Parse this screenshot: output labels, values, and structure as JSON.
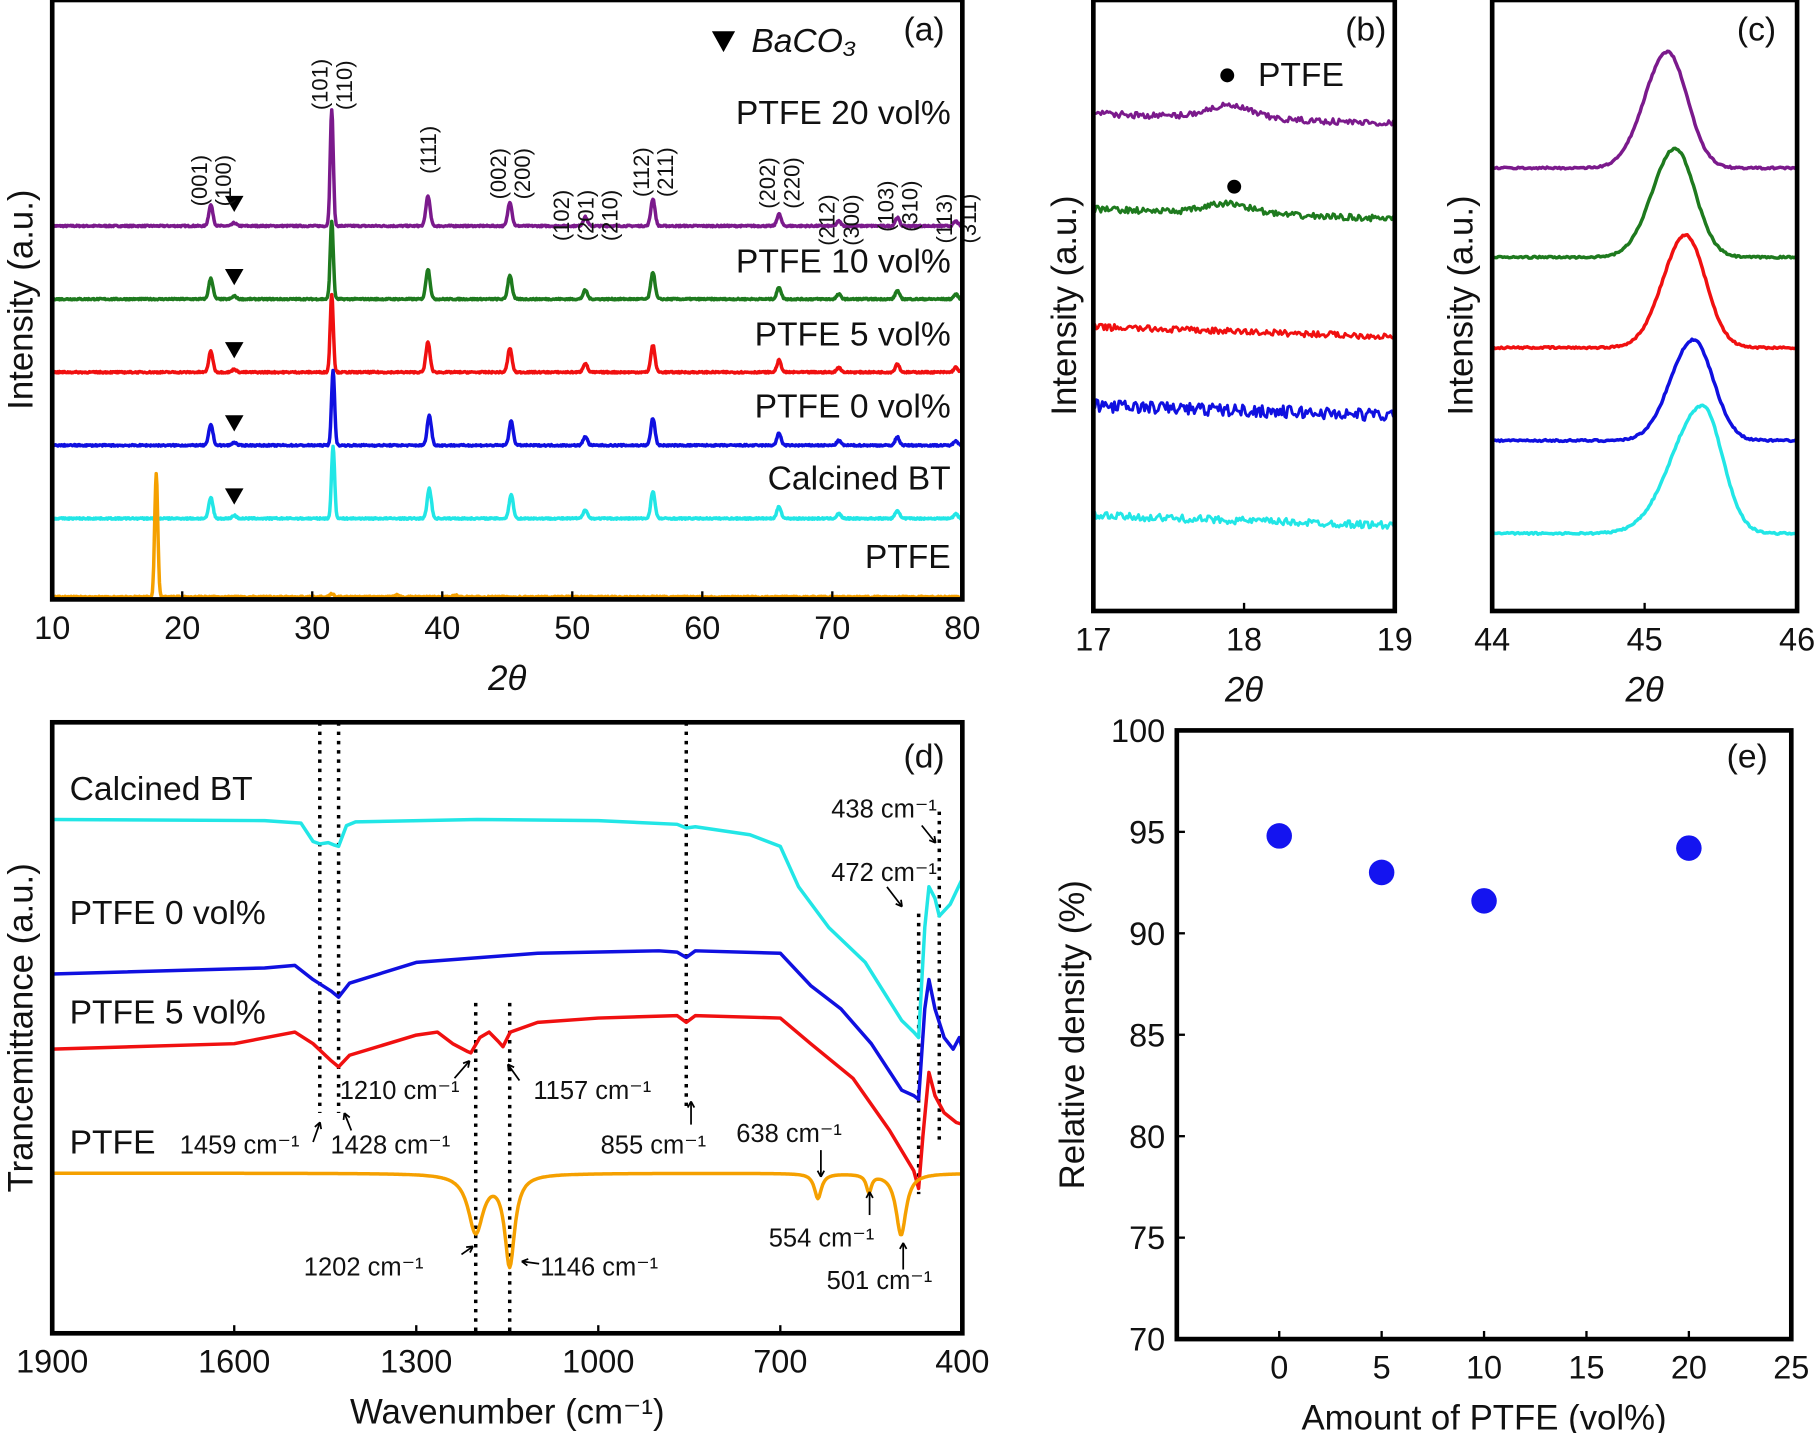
{
  "chart_data": [
    {
      "panel": "(a)",
      "type": "line",
      "xlabel": "2θ",
      "ylabel": "Intensity (a.u.)",
      "xlim": [
        10,
        80
      ],
      "xticks": [
        10,
        20,
        30,
        40,
        50,
        60,
        70,
        80
      ],
      "grid": false,
      "legend": {
        "marker": "▼",
        "text": "BaCO₃",
        "placement": "top-right"
      },
      "baco3_marker_2theta": 24,
      "series": [
        {
          "name": "PTFE 20 vol%",
          "color": "#7b1a8c",
          "offset": 62.3,
          "baco3": true,
          "peaks": [
            [
              22.2,
              3.5
            ],
            [
              24,
              0.5
            ],
            [
              31.5,
              19.3
            ],
            [
              38.9,
              5
            ],
            [
              45.2,
              4
            ],
            [
              51,
              1.5
            ],
            [
              56.2,
              4.5
            ],
            [
              65.9,
              2
            ],
            [
              70.5,
              0.8
            ],
            [
              75,
              1.4
            ],
            [
              79.5,
              0.8
            ]
          ]
        },
        {
          "name": "PTFE 10 vol%",
          "color": "#1e7a1e",
          "offset": 50.1,
          "baco3": true,
          "peaks": [
            [
              22.2,
              3.5
            ],
            [
              24,
              0.5
            ],
            [
              31.5,
              13
            ],
            [
              38.9,
              5
            ],
            [
              45.2,
              4
            ],
            [
              51,
              1.5
            ],
            [
              56.2,
              4.5
            ],
            [
              65.9,
              2
            ],
            [
              70.5,
              0.8
            ],
            [
              75,
              1.4
            ],
            [
              79.5,
              0.8
            ]
          ]
        },
        {
          "name": "PTFE 5 vol%",
          "color": "#f01010",
          "offset": 37.9,
          "baco3": true,
          "peaks": [
            [
              22.2,
              3.5
            ],
            [
              24,
              0.5
            ],
            [
              31.5,
              13
            ],
            [
              38.9,
              5
            ],
            [
              45.2,
              4
            ],
            [
              51,
              1.5
            ],
            [
              56.2,
              4.5
            ],
            [
              65.9,
              2
            ],
            [
              70.5,
              0.8
            ],
            [
              75,
              1.4
            ],
            [
              79.5,
              0.8
            ]
          ]
        },
        {
          "name": "PTFE 0 vol%",
          "color": "#1010e0",
          "offset": 25.7,
          "baco3": true,
          "peaks": [
            [
              22.2,
              3.5
            ],
            [
              24,
              0.5
            ],
            [
              31.6,
              12.4
            ],
            [
              39,
              5
            ],
            [
              45.3,
              4
            ],
            [
              51,
              1.5
            ],
            [
              56.2,
              4.5
            ],
            [
              65.9,
              2
            ],
            [
              70.5,
              0.8
            ],
            [
              75,
              1.4
            ],
            [
              79.5,
              0.8
            ]
          ]
        },
        {
          "name": "Calcined BT",
          "color": "#22e6e6",
          "offset": 13.5,
          "baco3": true,
          "peaks": [
            [
              22.2,
              3.5
            ],
            [
              24,
              0.5
            ],
            [
              31.6,
              12
            ],
            [
              39,
              5
            ],
            [
              45.3,
              4
            ],
            [
              51,
              1.5
            ],
            [
              56.2,
              4.5
            ],
            [
              65.9,
              2
            ],
            [
              70.5,
              0.8
            ],
            [
              75,
              1.4
            ],
            [
              79.5,
              0.8
            ]
          ]
        },
        {
          "name": "PTFE",
          "color": "#f5a000",
          "offset": 0.4,
          "baco3": false,
          "peaks": [
            [
              18,
              20.5
            ],
            [
              31.5,
              0.5
            ],
            [
              36.5,
              0.3
            ],
            [
              41,
              0.3
            ]
          ]
        }
      ],
      "miller_labels": [
        {
          "peak_2theta": 22.2,
          "lines": [
            "(001)",
            "(100)"
          ]
        },
        {
          "peak_2theta": 31.5,
          "lines": [
            "(101)",
            "(110)"
          ]
        },
        {
          "peak_2theta": 38.9,
          "lines": [
            "(111)"
          ]
        },
        {
          "peak_2theta": 45.2,
          "lines": [
            "(002)",
            "(200)"
          ]
        },
        {
          "peak_2theta": 51,
          "lines": [
            "(102)",
            "(201)",
            "(210)"
          ]
        },
        {
          "peak_2theta": 56.2,
          "lines": [
            "(112)",
            "(211)"
          ]
        },
        {
          "peak_2theta": 65.9,
          "lines": [
            "(202)",
            "(220)"
          ]
        },
        {
          "peak_2theta": 70.5,
          "lines": [
            "(212)",
            "(300)"
          ]
        },
        {
          "peak_2theta": 75,
          "lines": [
            "(103)",
            "(310)"
          ]
        },
        {
          "peak_2theta": 79.5,
          "lines": [
            "(113)",
            "(311)"
          ]
        }
      ]
    },
    {
      "panel": "(b)",
      "type": "line",
      "xlabel": "2θ",
      "ylabel": "Intensity (a.u.)",
      "xlim": [
        17,
        19
      ],
      "xticks": [
        17,
        18,
        19
      ],
      "annotation": {
        "marker": "●",
        "text": "PTFE",
        "position_2theta": 17.95
      },
      "series": [
        {
          "color": "#7b1a8c",
          "level": 81.4,
          "bump": 2.0,
          "noise": 0.5
        },
        {
          "color": "#1e7a1e",
          "level": 65.8,
          "bump": 1.6,
          "noise": 0.5
        },
        {
          "color": "#f01010",
          "level": 46.5,
          "bump": 0,
          "noise": 0.5
        },
        {
          "color": "#1010e0",
          "level": 33.6,
          "bump": 0,
          "noise": 1.0
        },
        {
          "color": "#22e6e6",
          "level": 15.6,
          "bump": 0,
          "noise": 0.6
        }
      ]
    },
    {
      "panel": "(c)",
      "type": "line",
      "xlabel": "2θ",
      "ylabel": "Intensity (a.u.)",
      "xlim": [
        44,
        46
      ],
      "xticks": [
        44,
        45,
        46
      ],
      "series": [
        {
          "color": "#7b1a8c",
          "baseline": 72.5,
          "peak_2theta": 45.15,
          "height": 19.0
        },
        {
          "color": "#1e7a1e",
          "baseline": 57.9,
          "peak_2theta": 45.2,
          "height": 17.8
        },
        {
          "color": "#f01010",
          "baseline": 43.1,
          "peak_2theta": 45.27,
          "height": 18.4
        },
        {
          "color": "#1010e0",
          "baseline": 27.9,
          "peak_2theta": 45.32,
          "height": 16.5
        },
        {
          "color": "#22e6e6",
          "baseline": 12.7,
          "peak_2theta": 45.38,
          "height": 20.9
        }
      ]
    },
    {
      "panel": "(d)",
      "type": "line",
      "xlabel": "Wavenumber (cm⁻¹)",
      "ylabel": "Trancemittance (a.u.)",
      "xlim": [
        1900,
        400
      ],
      "xticks": [
        1900,
        1600,
        1300,
        1000,
        700,
        400
      ],
      "series": [
        {
          "name": "Calcined BT",
          "color": "#22e6e6",
          "points": [
            [
              1900,
              84.1
            ],
            [
              1550,
              83.9
            ],
            [
              1490,
              83.5
            ],
            [
              1470,
              80.5
            ],
            [
              1459,
              80.1
            ],
            [
              1445,
              80.3
            ],
            [
              1435,
              79.9
            ],
            [
              1428,
              79.7
            ],
            [
              1415,
              83.1
            ],
            [
              1400,
              83.7
            ],
            [
              1200,
              84.1
            ],
            [
              1000,
              83.9
            ],
            [
              870,
              83.3
            ],
            [
              855,
              82.7
            ],
            [
              840,
              82.9
            ],
            [
              750,
              81.6
            ],
            [
              700,
              79.7
            ],
            [
              670,
              73.1
            ],
            [
              620,
              66.4
            ],
            [
              560,
              60.7
            ],
            [
              500,
              51.2
            ],
            [
              480,
              49.3
            ],
            [
              472,
              48.4
            ],
            [
              462,
              66.4
            ],
            [
              455,
              73.1
            ],
            [
              445,
              71.2
            ],
            [
              438,
              68.3
            ],
            [
              420,
              70.2
            ],
            [
              400,
              74.4
            ]
          ]
        },
        {
          "name": "PTFE 0 vol%",
          "color": "#1010e0",
          "points": [
            [
              1900,
              58.8
            ],
            [
              1550,
              59.8
            ],
            [
              1500,
              60.2
            ],
            [
              1470,
              57.9
            ],
            [
              1440,
              56
            ],
            [
              1428,
              55
            ],
            [
              1410,
              57.3
            ],
            [
              1300,
              60.7
            ],
            [
              1100,
              62.2
            ],
            [
              900,
              62.6
            ],
            [
              870,
              62.4
            ],
            [
              855,
              61.5
            ],
            [
              840,
              62.6
            ],
            [
              700,
              62.2
            ],
            [
              650,
              56.9
            ],
            [
              600,
              53.1
            ],
            [
              550,
              47.4
            ],
            [
              500,
              39.8
            ],
            [
              480,
              38.9
            ],
            [
              472,
              38.3
            ],
            [
              462,
              53.1
            ],
            [
              455,
              57.9
            ],
            [
              445,
              53.1
            ],
            [
              430,
              48.4
            ],
            [
              415,
              46.5
            ],
            [
              405,
              48.4
            ],
            [
              400,
              46.5
            ]
          ]
        },
        {
          "name": "PTFE 5 vol%",
          "color": "#f01010",
          "points": [
            [
              1900,
              46.5
            ],
            [
              1600,
              47.4
            ],
            [
              1500,
              49.3
            ],
            [
              1470,
              47.4
            ],
            [
              1440,
              44.6
            ],
            [
              1428,
              43.6
            ],
            [
              1410,
              45.5
            ],
            [
              1300,
              48.8
            ],
            [
              1265,
              49.3
            ],
            [
              1240,
              47.4
            ],
            [
              1215,
              46.1
            ],
            [
              1210,
              45.9
            ],
            [
              1195,
              48.4
            ],
            [
              1180,
              49.3
            ],
            [
              1165,
              47.8
            ],
            [
              1157,
              46.9
            ],
            [
              1145,
              49.3
            ],
            [
              1100,
              50.9
            ],
            [
              1000,
              51.6
            ],
            [
              870,
              52
            ],
            [
              855,
              50.9
            ],
            [
              840,
              52
            ],
            [
              700,
              51.6
            ],
            [
              650,
              47.4
            ],
            [
              580,
              41.7
            ],
            [
              520,
              33.2
            ],
            [
              480,
              26.6
            ],
            [
              472,
              23.7
            ],
            [
              465,
              32.3
            ],
            [
              455,
              42.7
            ],
            [
              445,
              38.9
            ],
            [
              430,
              36.1
            ],
            [
              410,
              34.5
            ],
            [
              400,
              34.2
            ]
          ]
        },
        {
          "name": "PTFE",
          "color": "#f5a000",
          "baseline": 26.2,
          "bands": [
            [
              1202,
              9.5,
              15
            ],
            [
              1146,
              14.8,
              10
            ],
            [
              638,
              4.1,
              7
            ],
            [
              554,
              2.9,
              5
            ],
            [
              501,
              10.1,
              10
            ]
          ]
        }
      ],
      "reference_lines": [
        1459,
        1428,
        1210,
        1157,
        855,
        472,
        438
      ],
      "annotations": [
        "438 cm⁻¹",
        "472 cm⁻¹",
        "1210 cm⁻¹",
        "1157 cm⁻¹",
        "1459 cm⁻¹",
        "1428 cm⁻¹",
        "855 cm⁻¹",
        "638 cm⁻¹",
        "554 cm⁻¹",
        "501 cm⁻¹",
        "1202 cm⁻¹",
        "1146 cm⁻¹"
      ]
    },
    {
      "panel": "(e)",
      "type": "scatter",
      "xlabel": "Amount of PTFE (vol%)",
      "ylabel": "Relative density (%)",
      "xlim": [
        -5,
        25
      ],
      "ylim": [
        70,
        100
      ],
      "xticks": [
        0,
        5,
        10,
        15,
        20,
        25
      ],
      "yticks": [
        70,
        75,
        80,
        85,
        90,
        95,
        100
      ],
      "color": "#1414f0",
      "x": [
        0,
        5,
        10,
        20
      ],
      "y": [
        94.8,
        93.0,
        91.6,
        94.2
      ]
    }
  ]
}
